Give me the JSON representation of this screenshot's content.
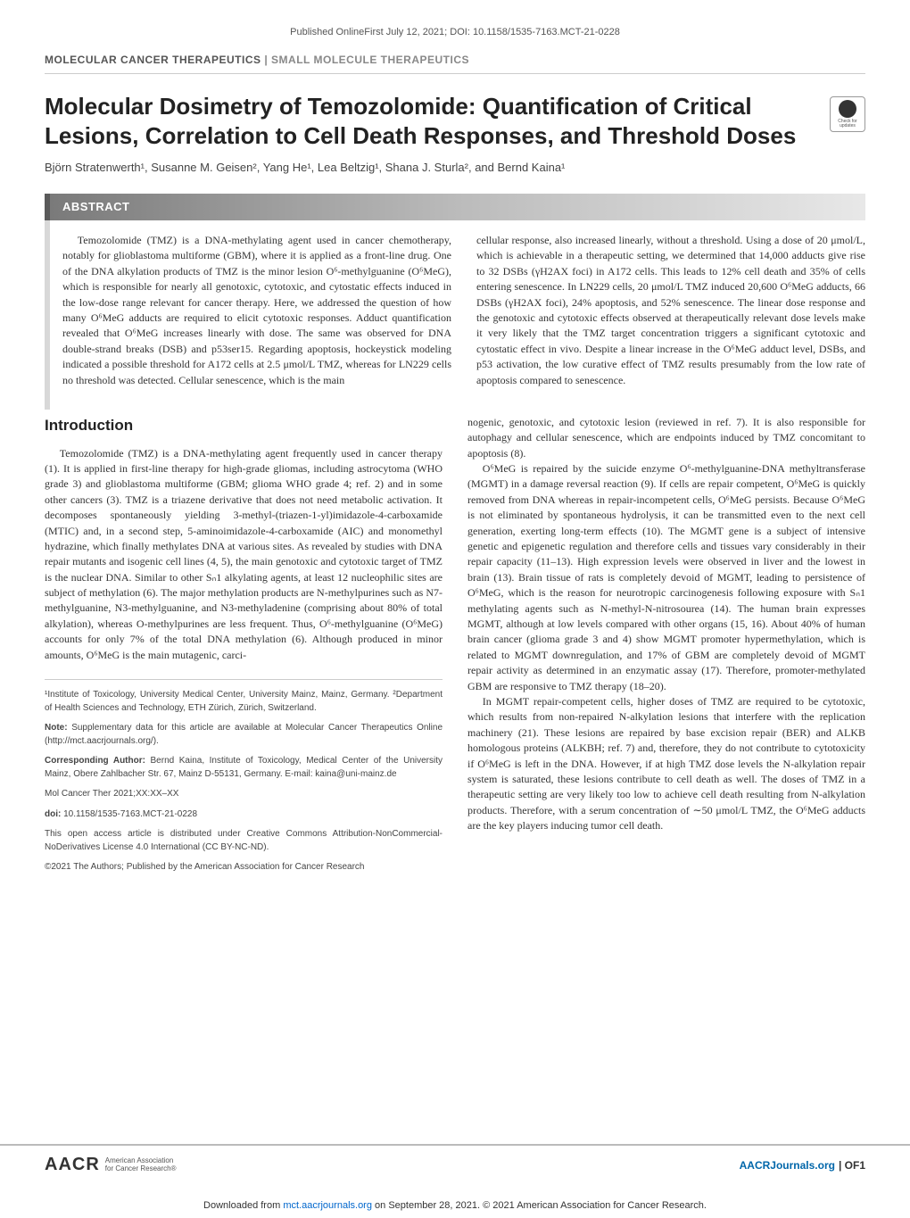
{
  "pubInfo": "Published OnlineFirst July 12, 2021; DOI: 10.1158/1535-7163.MCT-21-0228",
  "sectionHeader": {
    "journal": "MOLECULAR CANCER THERAPEUTICS",
    "category": "SMALL MOLECULE THERAPEUTICS"
  },
  "title": "Molecular Dosimetry of Temozolomide: Quantification of Critical Lesions, Correlation to Cell Death Responses, and Threshold Doses",
  "checkUpdates": "Check for updates",
  "authors": "Björn Stratenwerth¹, Susanne M. Geisen², Yang He¹, Lea Beltzig¹, Shana J. Sturla², and Bernd Kaina¹",
  "abstract": {
    "label": "ABSTRACT",
    "left": "Temozolomide (TMZ) is a DNA-methylating agent used in cancer chemotherapy, notably for glioblastoma multiforme (GBM), where it is applied as a front-line drug. One of the DNA alkylation products of TMZ is the minor lesion O⁶-methylguanine (O⁶MeG), which is responsible for nearly all genotoxic, cytotoxic, and cytostatic effects induced in the low-dose range relevant for cancer therapy. Here, we addressed the question of how many O⁶MeG adducts are required to elicit cytotoxic responses. Adduct quantification revealed that O⁶MeG increases linearly with dose. The same was observed for DNA double-strand breaks (DSB) and p53ser15. Regarding apoptosis, hockeystick modeling indicated a possible threshold for A172 cells at 2.5 μmol/L TMZ, whereas for LN229 cells no threshold was detected. Cellular senescence, which is the main",
    "right": "cellular response, also increased linearly, without a threshold. Using a dose of 20 μmol/L, which is achievable in a therapeutic setting, we determined that 14,000 adducts give rise to 32 DSBs (γH2AX foci) in A172 cells. This leads to 12% cell death and 35% of cells entering senescence. In LN229 cells, 20 μmol/L TMZ induced 20,600 O⁶MeG adducts, 66 DSBs (γH2AX foci), 24% apoptosis, and 52% senescence. The linear dose response and the genotoxic and cytotoxic effects observed at therapeutically relevant dose levels make it very likely that the TMZ target concentration triggers a significant cytotoxic and cytostatic effect in vivo. Despite a linear increase in the O⁶MeG adduct level, DSBs, and p53 activation, the low curative effect of TMZ results presumably from the low rate of apoptosis compared to senescence."
  },
  "intro": {
    "heading": "Introduction",
    "leftP1": "Temozolomide (TMZ) is a DNA-methylating agent frequently used in cancer therapy (1). It is applied in first-line therapy for high-grade gliomas, including astrocytoma (WHO grade 3) and glioblastoma multiforme (GBM; glioma WHO grade 4; ref. 2) and in some other cancers (3). TMZ is a triazene derivative that does not need metabolic activation. It decomposes spontaneously yielding 3-methyl-(triazen-1-yl)imidazole-4-carboxamide (MTIC) and, in a second step, 5-aminoimidazole-4-carboxamide (AIC) and monomethyl hydrazine, which finally methylates DNA at various sites. As revealed by studies with DNA repair mutants and isogenic cell lines (4, 5), the main genotoxic and cytotoxic target of TMZ is the nuclear DNA. Similar to other Sₙ1 alkylating agents, at least 12 nucleophilic sites are subject of methylation (6). The major methylation products are N-methylpurines such as N7-methylguanine, N3-methylguanine, and N3-methyladenine (comprising about 80% of total alkylation), whereas O-methylpurines are less frequent. Thus, O⁶-methylguanine (O⁶MeG) accounts for only 7% of the total DNA methylation (6). Although produced in minor amounts, O⁶MeG is the main mutagenic, carci-",
    "rightP1": "nogenic, genotoxic, and cytotoxic lesion (reviewed in ref. 7). It is also responsible for autophagy and cellular senescence, which are endpoints induced by TMZ concomitant to apoptosis (8).",
    "rightP2": "O⁶MeG is repaired by the suicide enzyme O⁶-methylguanine-DNA methyltransferase (MGMT) in a damage reversal reaction (9). If cells are repair competent, O⁶MeG is quickly removed from DNA whereas in repair-incompetent cells, O⁶MeG persists. Because O⁶MeG is not eliminated by spontaneous hydrolysis, it can be transmitted even to the next cell generation, exerting long-term effects (10). The MGMT gene is a subject of intensive genetic and epigenetic regulation and therefore cells and tissues vary considerably in their repair capacity (11–13). High expression levels were observed in liver and the lowest in brain (13). Brain tissue of rats is completely devoid of MGMT, leading to persistence of O⁶MeG, which is the reason for neurotropic carcinogenesis following exposure with Sₙ1 methylating agents such as N-methyl-N-nitrosourea (14). The human brain expresses MGMT, although at low levels compared with other organs (15, 16). About 40% of human brain cancer (glioma grade 3 and 4) show MGMT promoter hypermethylation, which is related to MGMT downregulation, and 17% of GBM are completely devoid of MGMT repair activity as determined in an enzymatic assay (17). Therefore, promoter-methylated GBM are responsive to TMZ therapy (18–20).",
    "rightP3": "In MGMT repair-competent cells, higher doses of TMZ are required to be cytotoxic, which results from non-repaired N-alkylation lesions that interfere with the replication machinery (21). These lesions are repaired by base excision repair (BER) and ALKB homologous proteins (ALKBH; ref. 7) and, therefore, they do not contribute to cytotoxicity if O⁶MeG is left in the DNA. However, if at high TMZ dose levels the N-alkylation repair system is saturated, these lesions contribute to cell death as well. The doses of TMZ in a therapeutic setting are very likely too low to achieve cell death resulting from N-alkylation products. Therefore, with a serum concentration of ∼50 μmol/L TMZ, the O⁶MeG adducts are the key players inducing tumor cell death."
  },
  "footnotes": {
    "affil": "¹Institute of Toxicology, University Medical Center, University Mainz, Mainz, Germany. ²Department of Health Sciences and Technology, ETH Zürich, Zürich, Switzerland.",
    "note": "Note: Supplementary data for this article are available at Molecular Cancer Therapeutics Online (http://mct.aacrjournals.org/).",
    "corresponding": "Corresponding Author: Bernd Kaina, Institute of Toxicology, Medical Center of the University Mainz, Obere Zahlbacher Str. 67, Mainz D-55131, Germany. E-mail: kaina@uni-mainz.de",
    "citation": "Mol Cancer Ther 2021;XX:XX–XX",
    "doi": "doi: 10.1158/1535-7163.MCT-21-0228",
    "license": "This open access article is distributed under Creative Commons Attribution-NonCommercial-NoDerivatives License 4.0 International (CC BY-NC-ND).",
    "copyright": "©2021 The Authors; Published by the American Association for Cancer Research"
  },
  "footer": {
    "logoMain": "AACR",
    "logoSub1": "American Association",
    "logoSub2": "for Cancer Research®",
    "journalLink": "AACRJournals.org",
    "pageNum": "OF1"
  },
  "download": {
    "prefix": "Downloaded from ",
    "link": "mct.aacrjournals.org",
    "suffix": " on September 28, 2021. © 2021 American Association for Cancer Research."
  }
}
